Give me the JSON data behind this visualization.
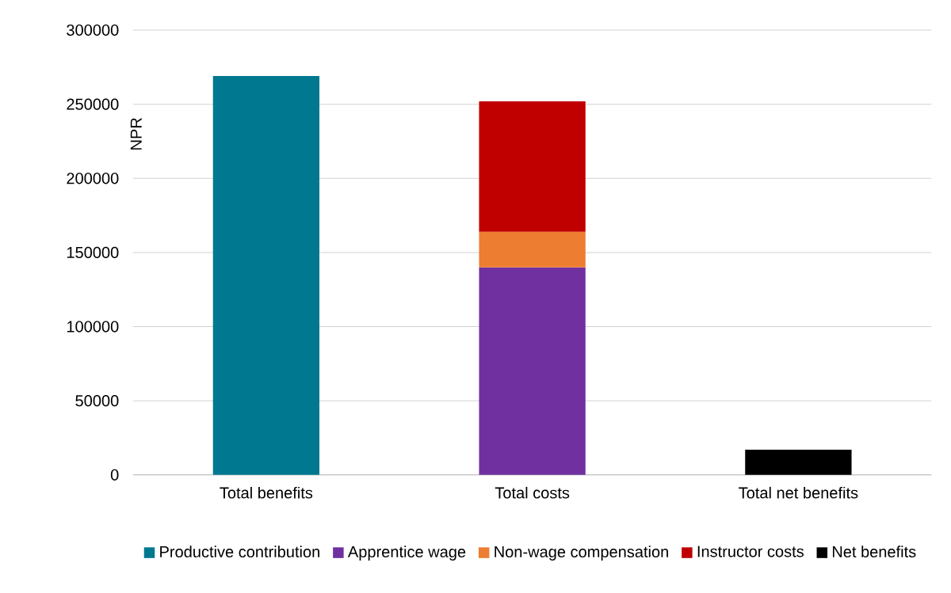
{
  "chart_data": {
    "type": "bar",
    "ylabel": "NPR",
    "stacked": true,
    "categories": [
      "Total benefits",
      "Total costs",
      "Total net benefits"
    ],
    "series": [
      {
        "name": "Productive contribution",
        "color": "#00788f",
        "values": [
          269000,
          null,
          null
        ]
      },
      {
        "name": "Apprentice wage",
        "color": "#7030a0",
        "values": [
          null,
          140000,
          null
        ]
      },
      {
        "name": "Non-wage compensation",
        "color": "#ed7d31",
        "values": [
          null,
          24000,
          null
        ]
      },
      {
        "name": "Instructor costs",
        "color": "#c00000",
        "values": [
          null,
          88000,
          null
        ]
      },
      {
        "name": "Net benefits",
        "color": "#000000",
        "values": [
          null,
          null,
          17000
        ]
      }
    ],
    "ylim": [
      0,
      300000
    ],
    "yticks": [
      0,
      50000,
      100000,
      150000,
      200000,
      250000,
      300000
    ],
    "grid": "y",
    "legend": "bottom"
  }
}
